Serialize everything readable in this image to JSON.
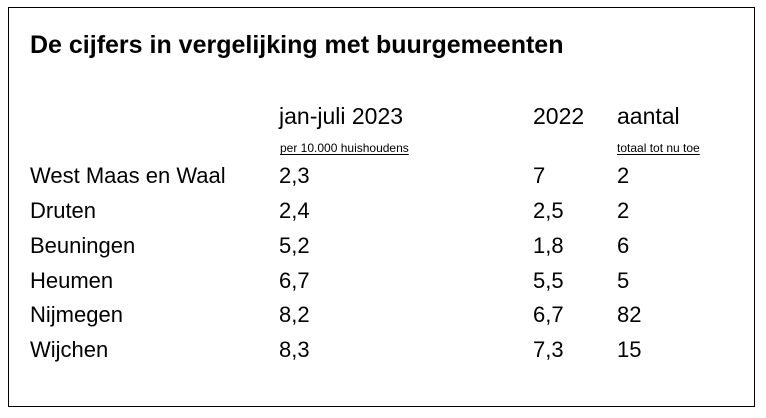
{
  "title": "De cijfers in vergelijking met buurgemeenten",
  "columns": {
    "col1": {
      "header": "jan-juli 2023",
      "subheader": "per 10.000 huishoudens"
    },
    "col2": {
      "header": "2022"
    },
    "col3": {
      "header": "aantal",
      "subheader": "totaal tot nu toe"
    }
  },
  "rows": [
    {
      "name": "West Maas en Waal",
      "v2023": "2,3",
      "v2022": "7",
      "count": "2"
    },
    {
      "name": "Druten",
      "v2023": "2,4",
      "v2022": "2,5",
      "count": "2"
    },
    {
      "name": "Beuningen",
      "v2023": "5,2",
      "v2022": "1,8",
      "count": "6"
    },
    {
      "name": "Heumen",
      "v2023": "6,7",
      "v2022": "5,5",
      "count": "5"
    },
    {
      "name": "Nijmegen",
      "v2023": "8,2",
      "v2022": "6,7",
      "count": "82"
    },
    {
      "name": "Wijchen",
      "v2023": "8,3",
      "v2022": "7,3",
      "count": "15"
    }
  ]
}
